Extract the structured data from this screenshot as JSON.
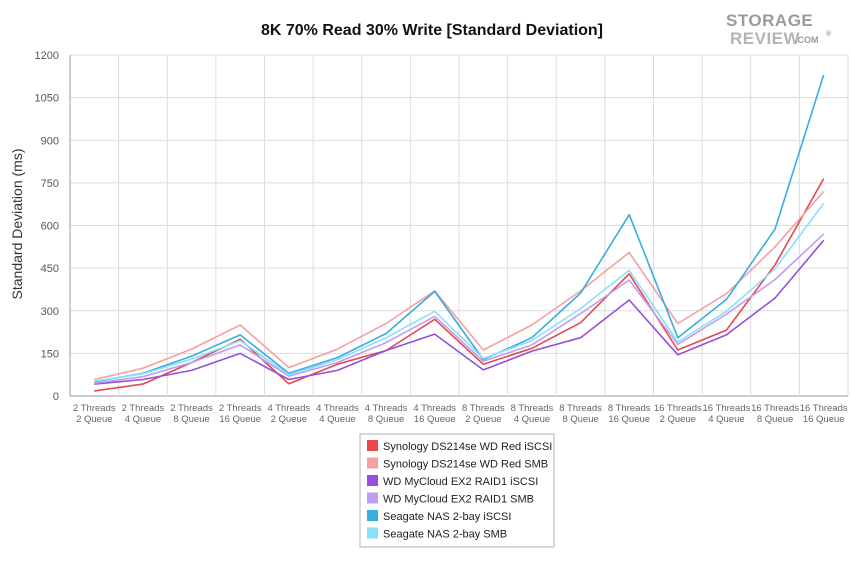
{
  "logo": {
    "line1": "STORAGE",
    "line2": "REVIEW",
    "suffix": ".COM",
    "mark": "®"
  },
  "chart_data": {
    "type": "line",
    "title": "8K 70% Read 30% Write [Standard Deviation]",
    "ylabel": "Standard Deviation (ms)",
    "xlabel": "",
    "ylim": [
      0,
      1200
    ],
    "yticks": [
      0,
      150,
      300,
      450,
      600,
      750,
      900,
      1050,
      1200
    ],
    "grid": true,
    "legend_position": "bottom-center",
    "categories": [
      [
        "2 Threads",
        "2 Queue"
      ],
      [
        "2 Threads",
        "4 Queue"
      ],
      [
        "2 Threads",
        "8 Queue"
      ],
      [
        "2 Threads",
        "16 Queue"
      ],
      [
        "4 Threads",
        "2 Queue"
      ],
      [
        "4 Threads",
        "4 Queue"
      ],
      [
        "4 Threads",
        "8 Queue"
      ],
      [
        "4 Threads",
        "16 Queue"
      ],
      [
        "8 Threads",
        "2 Queue"
      ],
      [
        "8 Threads",
        "4 Queue"
      ],
      [
        "8 Threads",
        "8 Queue"
      ],
      [
        "8 Threads",
        "16 Queue"
      ],
      [
        "16 Threads",
        "2 Queue"
      ],
      [
        "16 Threads",
        "4 Queue"
      ],
      [
        "16 Threads",
        "8 Queue"
      ],
      [
        "16 Threads",
        "16 Queue"
      ]
    ],
    "series": [
      {
        "name": "Synology DS214se WD Red iSCSI",
        "color": "#e8474b",
        "values": [
          18,
          42,
          118,
          200,
          43,
          112,
          160,
          270,
          112,
          168,
          258,
          430,
          162,
          232,
          462,
          765
        ]
      },
      {
        "name": "Synology DS214se WD Red SMB",
        "color": "#f5a0a0",
        "values": [
          58,
          98,
          165,
          250,
          100,
          165,
          255,
          370,
          162,
          250,
          370,
          505,
          255,
          360,
          525,
          720
        ]
      },
      {
        "name": "WD MyCloud EX2 RAID1 iSCSI",
        "color": "#9350dc",
        "values": [
          42,
          58,
          90,
          150,
          58,
          90,
          160,
          218,
          92,
          158,
          205,
          338,
          145,
          215,
          345,
          548
        ]
      },
      {
        "name": "WD MyCloud EX2 RAID1 SMB",
        "color": "#c09ef0",
        "values": [
          45,
          68,
          118,
          180,
          70,
          118,
          188,
          280,
          122,
          180,
          290,
          408,
          182,
          288,
          410,
          570
        ]
      },
      {
        "name": "Seagate NAS 2-bay iSCSI",
        "color": "#35aee0",
        "values": [
          50,
          80,
          140,
          215,
          80,
          135,
          220,
          368,
          128,
          205,
          362,
          638,
          205,
          340,
          588,
          1130
        ]
      },
      {
        "name": "Seagate NAS 2-bay SMB",
        "color": "#8ae0f8",
        "values": [
          52,
          78,
          130,
          195,
          75,
          128,
          205,
          298,
          132,
          195,
          308,
          442,
          190,
          298,
          448,
          678
        ]
      }
    ]
  }
}
